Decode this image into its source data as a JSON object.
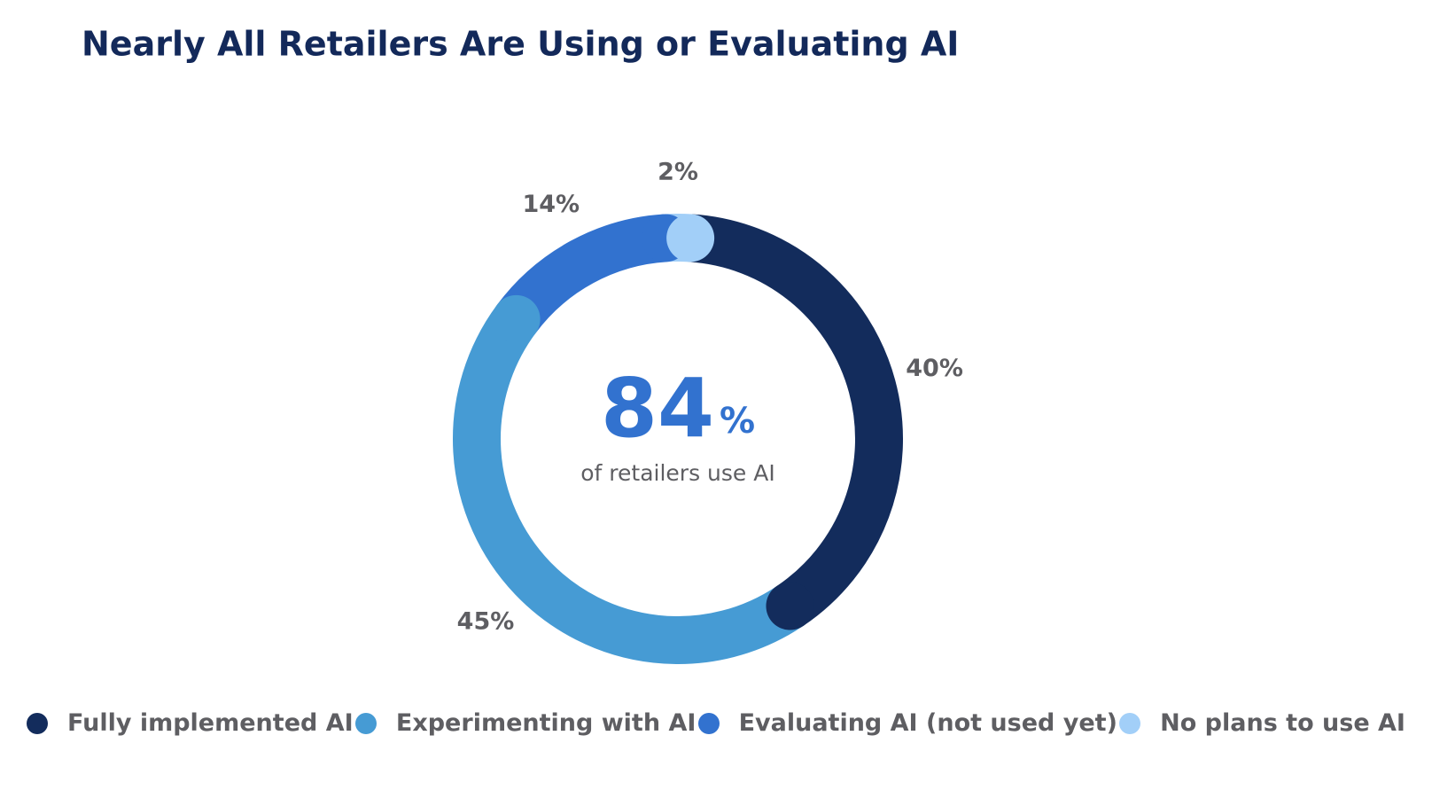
{
  "chart_data": {
    "type": "donut",
    "title": "Nearly All Retailers Are Using or Evaluating AI",
    "categories": [
      "Fully implemented AI",
      "Experimenting with AI",
      "Evaluating AI (not used yet)",
      "No plans to use AI"
    ],
    "values": [
      40,
      45,
      14,
      2
    ],
    "value_labels": [
      "40%",
      "45%",
      "14%",
      "2%"
    ],
    "colors": [
      "#132c5c",
      "#469bd4",
      "#3272cf",
      "#a2cff8"
    ],
    "center_text": "84",
    "center_suffix": "%",
    "center_caption": "of retailers use AI",
    "legend": "bottom"
  }
}
